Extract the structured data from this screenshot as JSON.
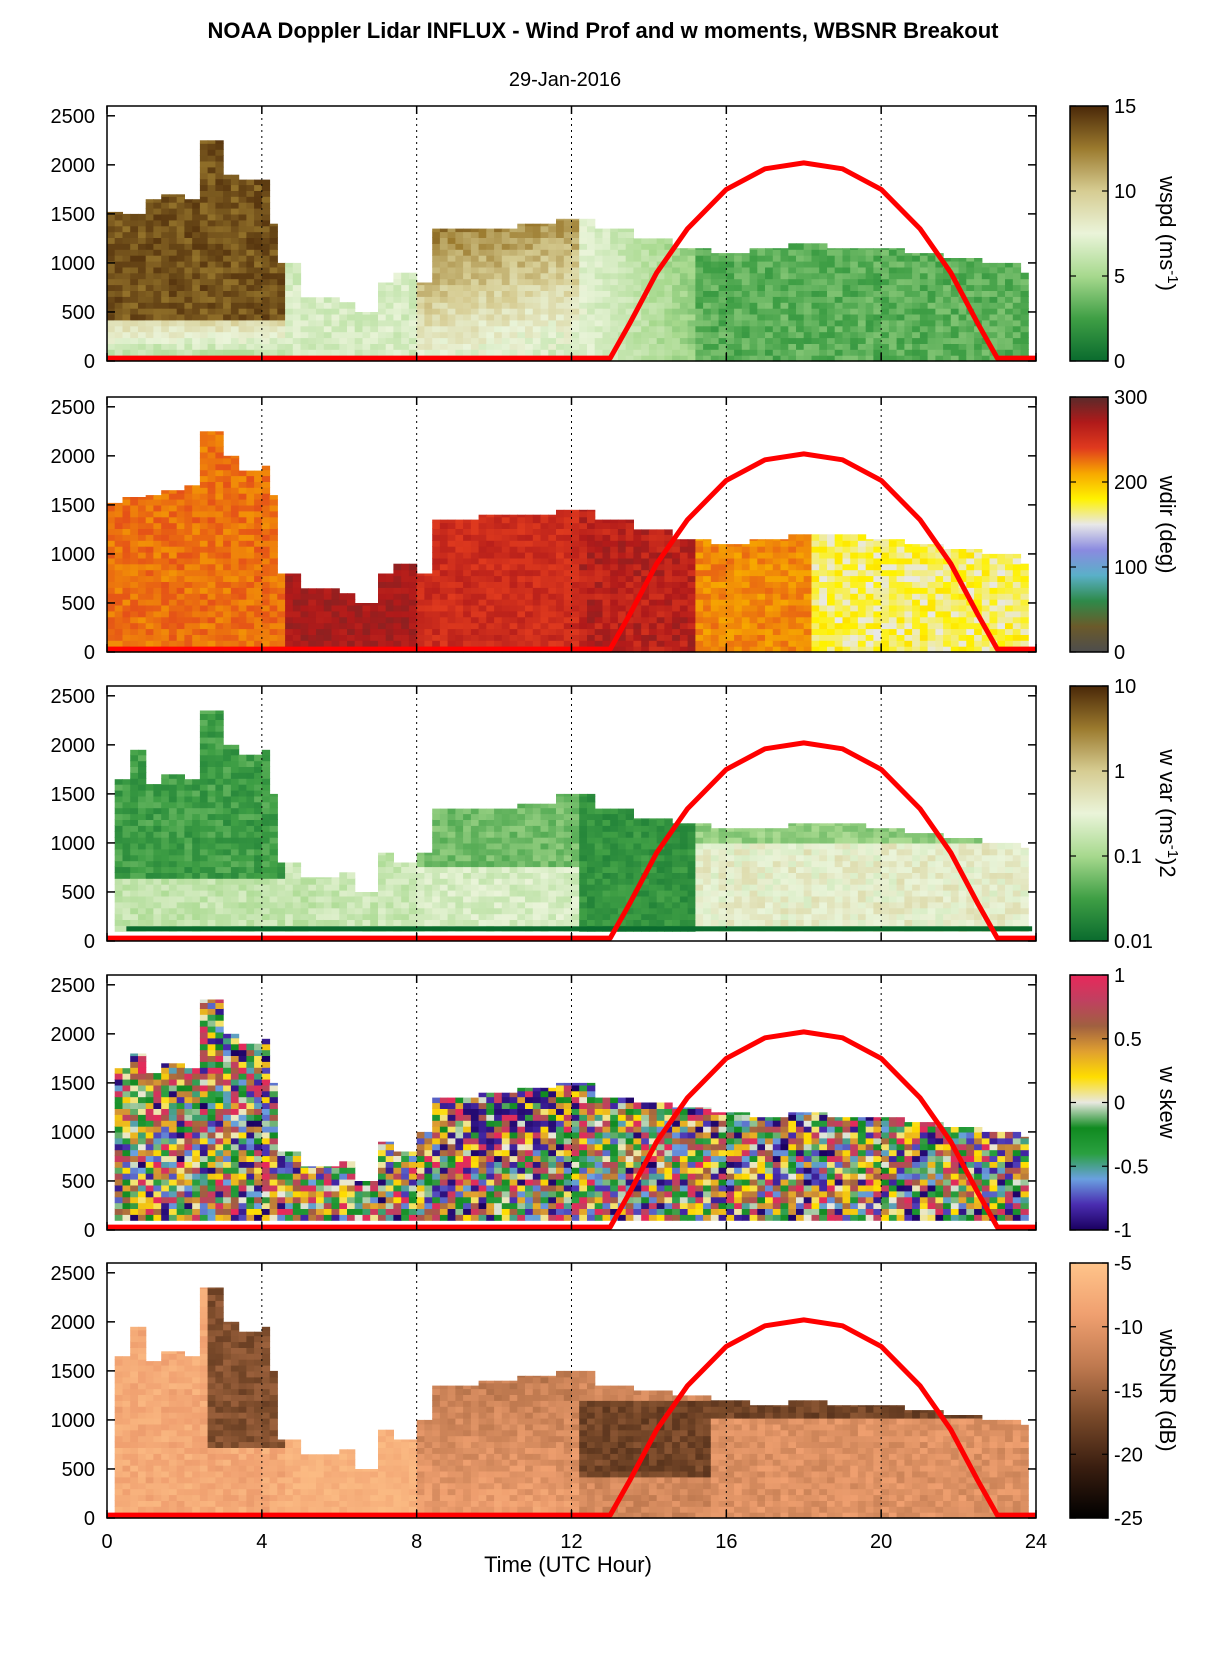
{
  "figure": {
    "title": "NOAA Doppler Lidar INFLUX - Wind Prof and w moments, WBSNR Breakout",
    "date": "29-Jan-2016",
    "xlabel": "Time (UTC Hour)",
    "xlim": [
      0,
      24
    ],
    "xticks": [
      "0",
      "4",
      "8",
      "12",
      "16",
      "20",
      "24"
    ],
    "ylim": [
      0,
      2600
    ],
    "yticks": [
      "0",
      "500",
      "1000",
      "1500",
      "2000",
      "2500"
    ],
    "sun_line_color": "#ff0000"
  },
  "chart_data": [
    {
      "type": "heatmap",
      "colorbar": {
        "label": "wspd (ms-1)",
        "label_main": "wspd (ms",
        "label_sup": "-1",
        "label_end": ")",
        "ticks": [
          "15",
          "10",
          "5",
          "0"
        ],
        "range": [
          0,
          15
        ],
        "colors": [
          "#0a6b2e",
          "#3f9f45",
          "#a7d98e",
          "#eaf4d9",
          "#d6cc92",
          "#9b7a2e",
          "#4a2808"
        ]
      },
      "top_profile": [
        [
          0.1,
          1520
        ],
        [
          0.5,
          1500
        ],
        [
          1.0,
          1650
        ],
        [
          1.5,
          1700
        ],
        [
          2.0,
          1650
        ],
        [
          2.5,
          2250
        ],
        [
          3.0,
          1900
        ],
        [
          3.5,
          1850
        ],
        [
          4.0,
          1850
        ],
        [
          4.3,
          1400
        ],
        [
          4.5,
          1000
        ],
        [
          5.0,
          650
        ],
        [
          6.0,
          600
        ],
        [
          6.5,
          500
        ],
        [
          7.0,
          800
        ],
        [
          7.5,
          900
        ],
        [
          8.0,
          800
        ],
        [
          8.5,
          1350
        ],
        [
          9.5,
          1350
        ],
        [
          10.5,
          1400
        ],
        [
          11.5,
          1450
        ],
        [
          12.5,
          1350
        ],
        [
          13.5,
          1250
        ],
        [
          14.5,
          1150
        ],
        [
          15.5,
          1100
        ],
        [
          16.5,
          1150
        ],
        [
          17.5,
          1200
        ],
        [
          18.5,
          1150
        ],
        [
          19.5,
          1150
        ],
        [
          20.5,
          1100
        ],
        [
          21.5,
          1050
        ],
        [
          22.5,
          1000
        ],
        [
          23.5,
          900
        ]
      ]
    },
    {
      "type": "heatmap",
      "colorbar": {
        "label": "wdir (deg)",
        "ticks": [
          "300",
          "200",
          "100",
          "0"
        ],
        "range": [
          0,
          360
        ],
        "colors": [
          "#4d4d4d",
          "#6b5a2a",
          "#2e8a4a",
          "#5ab0c8",
          "#8a8ae0",
          "#e8e8e8",
          "#fff200",
          "#f7a800",
          "#e03a1e",
          "#b01a1a",
          "#5a2a2a"
        ]
      },
      "top_profile": [
        [
          0.1,
          1520
        ],
        [
          0.5,
          1580
        ],
        [
          1.0,
          1600
        ],
        [
          1.5,
          1650
        ],
        [
          2.0,
          1700
        ],
        [
          2.5,
          2250
        ],
        [
          3.0,
          2000
        ],
        [
          3.5,
          1850
        ],
        [
          4.0,
          1900
        ],
        [
          4.3,
          1600
        ],
        [
          4.5,
          800
        ],
        [
          5.0,
          650
        ],
        [
          6.0,
          600
        ],
        [
          6.5,
          500
        ],
        [
          7.0,
          800
        ],
        [
          7.5,
          900
        ],
        [
          8.0,
          800
        ],
        [
          8.5,
          1350
        ],
        [
          9.5,
          1400
        ],
        [
          10.5,
          1400
        ],
        [
          11.5,
          1450
        ],
        [
          12.5,
          1350
        ],
        [
          13.5,
          1250
        ],
        [
          14.5,
          1150
        ],
        [
          15.5,
          1100
        ],
        [
          16.5,
          1150
        ],
        [
          17.5,
          1200
        ],
        [
          18.5,
          1200
        ],
        [
          19.5,
          1150
        ],
        [
          20.5,
          1100
        ],
        [
          21.5,
          1050
        ],
        [
          22.5,
          1000
        ],
        [
          23.5,
          900
        ]
      ]
    },
    {
      "type": "heatmap",
      "colorbar": {
        "label": "w var (ms-1)2",
        "label_main": "w var (ms",
        "label_sup": "-1",
        "label_end": ")2",
        "ticks": [
          "10",
          "1",
          "0.1",
          "0.01"
        ],
        "range": [
          0.01,
          10
        ],
        "log": true,
        "colors": [
          "#0a6b2e",
          "#3f9f45",
          "#a7d98e",
          "#eaf4d9",
          "#d6cc92",
          "#9b7a2e",
          "#4a2808"
        ]
      },
      "top_profile": [
        [
          0.3,
          1650
        ],
        [
          0.6,
          1950
        ],
        [
          1.0,
          1600
        ],
        [
          1.5,
          1700
        ],
        [
          2.0,
          1650
        ],
        [
          2.5,
          2350
        ],
        [
          3.0,
          2000
        ],
        [
          3.5,
          1900
        ],
        [
          4.0,
          1950
        ],
        [
          4.3,
          1500
        ],
        [
          4.5,
          800
        ],
        [
          5.0,
          650
        ],
        [
          6.0,
          700
        ],
        [
          6.5,
          500
        ],
        [
          7.0,
          900
        ],
        [
          7.5,
          800
        ],
        [
          8.0,
          900
        ],
        [
          8.5,
          1350
        ],
        [
          9.5,
          1350
        ],
        [
          10.5,
          1400
        ],
        [
          11.5,
          1500
        ],
        [
          12.5,
          1350
        ],
        [
          13.5,
          1250
        ],
        [
          14.5,
          1200
        ],
        [
          15.5,
          1150
        ],
        [
          16.5,
          1150
        ],
        [
          17.5,
          1200
        ],
        [
          18.5,
          1200
        ],
        [
          19.5,
          1150
        ],
        [
          20.5,
          1100
        ],
        [
          21.5,
          1050
        ],
        [
          22.5,
          1000
        ],
        [
          23.5,
          950
        ]
      ]
    },
    {
      "type": "heatmap",
      "colorbar": {
        "label": "w skew",
        "ticks": [
          "1",
          "0.5",
          "0",
          "-0.5",
          "-1"
        ],
        "range": [
          -1,
          1
        ],
        "colors": [
          "#1a0060",
          "#4a2db0",
          "#6aa0e0",
          "#2aa040",
          "#108a20",
          "#e8e8e0",
          "#ffdd00",
          "#e0a030",
          "#a06040",
          "#c04060",
          "#e8285a"
        ]
      },
      "top_profile": [
        [
          0.3,
          1650
        ],
        [
          0.6,
          1800
        ],
        [
          1.0,
          1600
        ],
        [
          1.5,
          1700
        ],
        [
          2.0,
          1650
        ],
        [
          2.5,
          2350
        ],
        [
          3.0,
          2000
        ],
        [
          3.5,
          1900
        ],
        [
          4.0,
          1950
        ],
        [
          4.3,
          1500
        ],
        [
          4.5,
          800
        ],
        [
          5.0,
          650
        ],
        [
          6.0,
          700
        ],
        [
          6.5,
          500
        ],
        [
          7.0,
          900
        ],
        [
          7.5,
          800
        ],
        [
          8.0,
          1000
        ],
        [
          8.5,
          1350
        ],
        [
          9.5,
          1400
        ],
        [
          10.5,
          1450
        ],
        [
          11.5,
          1500
        ],
        [
          12.5,
          1350
        ],
        [
          13.5,
          1300
        ],
        [
          14.5,
          1250
        ],
        [
          15.5,
          1200
        ],
        [
          16.5,
          1150
        ],
        [
          17.5,
          1200
        ],
        [
          18.5,
          1150
        ],
        [
          19.5,
          1150
        ],
        [
          20.5,
          1100
        ],
        [
          21.5,
          1050
        ],
        [
          22.5,
          1000
        ],
        [
          23.5,
          950
        ]
      ]
    },
    {
      "type": "heatmap",
      "colorbar": {
        "label": "wbSNR (dB)",
        "ticks": [
          "-5",
          "-10",
          "-15",
          "-20",
          "-25"
        ],
        "range": [
          -25,
          -5
        ],
        "colors": [
          "#000000",
          "#3a1e10",
          "#7a4a2a",
          "#c07a50",
          "#f0a070",
          "#ffc48a"
        ]
      },
      "top_profile": [
        [
          0.3,
          1650
        ],
        [
          0.6,
          1950
        ],
        [
          1.0,
          1600
        ],
        [
          1.5,
          1700
        ],
        [
          2.0,
          1650
        ],
        [
          2.5,
          2350
        ],
        [
          3.0,
          2000
        ],
        [
          3.5,
          1900
        ],
        [
          4.0,
          1950
        ],
        [
          4.3,
          1500
        ],
        [
          4.5,
          800
        ],
        [
          5.0,
          650
        ],
        [
          6.0,
          700
        ],
        [
          6.5,
          500
        ],
        [
          7.0,
          900
        ],
        [
          7.5,
          800
        ],
        [
          8.0,
          1000
        ],
        [
          8.5,
          1350
        ],
        [
          9.5,
          1400
        ],
        [
          10.5,
          1450
        ],
        [
          11.5,
          1500
        ],
        [
          12.5,
          1350
        ],
        [
          13.5,
          1300
        ],
        [
          14.5,
          1250
        ],
        [
          15.5,
          1200
        ],
        [
          16.5,
          1150
        ],
        [
          17.5,
          1200
        ],
        [
          18.5,
          1150
        ],
        [
          19.5,
          1150
        ],
        [
          20.5,
          1100
        ],
        [
          21.5,
          1050
        ],
        [
          22.5,
          1000
        ],
        [
          23.5,
          950
        ]
      ]
    }
  ],
  "sun_elevation_curve": [
    [
      0,
      30
    ],
    [
      13,
      30
    ],
    [
      13.5,
      380
    ],
    [
      14.2,
      900
    ],
    [
      15.0,
      1350
    ],
    [
      16.0,
      1750
    ],
    [
      17.0,
      1960
    ],
    [
      18.0,
      2020
    ],
    [
      19.0,
      1960
    ],
    [
      20.0,
      1750
    ],
    [
      21.0,
      1350
    ],
    [
      21.8,
      900
    ],
    [
      22.5,
      380
    ],
    [
      23.0,
      30
    ],
    [
      24,
      30
    ]
  ]
}
